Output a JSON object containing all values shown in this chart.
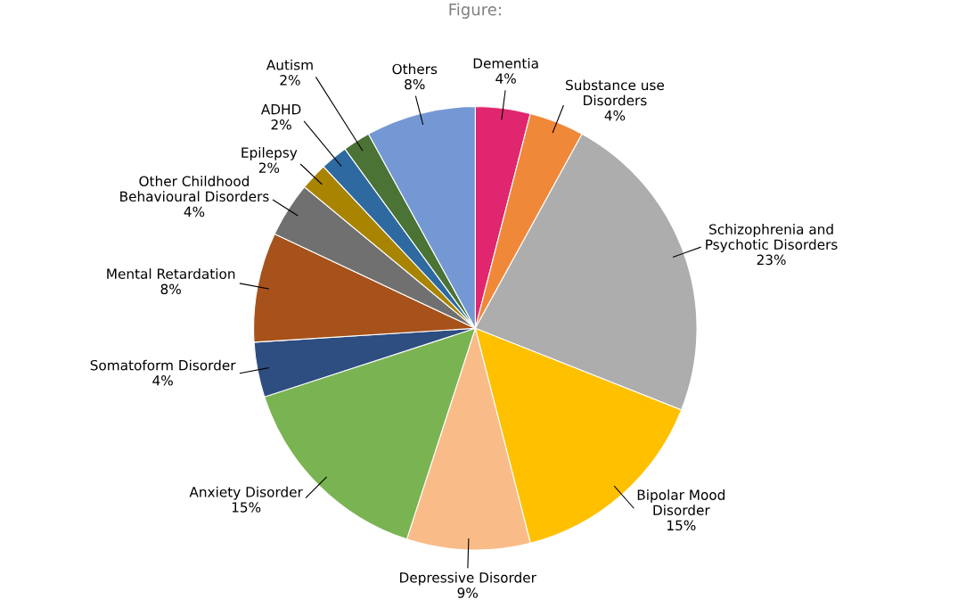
{
  "chart_data": {
    "type": "pie",
    "title": "Figure:",
    "categories": [
      "Dementia",
      "Substance use\nDisorders",
      "Schizophrenia and\nPsychotic Disorders",
      "Bipolar Mood\nDisorder",
      "Depressive Disorder",
      "Anxiety Disorder",
      "Somatoform Disorder",
      "Mental Retardation",
      "Other Childhood\nBehavioural Disorders",
      "Epilepsy",
      "ADHD",
      "Autism",
      "Others"
    ],
    "values": [
      4,
      4,
      23,
      15,
      9,
      15,
      4,
      8,
      4,
      2,
      2,
      2,
      8
    ],
    "value_labels": [
      "4%",
      "4%",
      "23%",
      "15%",
      "9%",
      "15%",
      "4%",
      "8%",
      "4%",
      "2%",
      "2%",
      "2%",
      "8%"
    ],
    "colors": [
      "#e0266f",
      "#f0883a",
      "#adadad",
      "#ffc000",
      "#f9bc88",
      "#7ab351",
      "#2e4d80",
      "#a6521a",
      "#707070",
      "#a88400",
      "#2e6aa0",
      "#4a7335",
      "#7498d4"
    ],
    "legend": false
  }
}
